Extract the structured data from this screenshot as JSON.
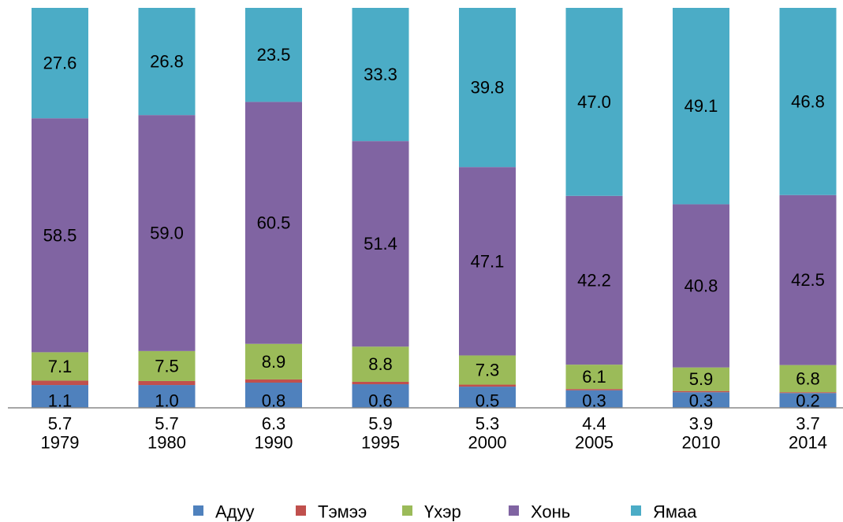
{
  "chart_data": {
    "type": "stacked_bar_percent",
    "categories": [
      "1979",
      "1980",
      "1990",
      "1995",
      "2000",
      "2005",
      "2010",
      "2014"
    ],
    "ylim": [
      0,
      100
    ],
    "grid": false,
    "legend_position": "bottom",
    "series": [
      {
        "name": "Адуу",
        "color": "#4f81bd",
        "values": [
          5.7,
          5.7,
          6.3,
          5.9,
          5.3,
          4.4,
          3.9,
          3.7
        ]
      },
      {
        "name": "Тэмээ",
        "color": "#c0504d",
        "values": [
          1.1,
          1.0,
          0.8,
          0.6,
          0.5,
          0.3,
          0.3,
          0.2
        ]
      },
      {
        "name": "Үхэр",
        "color": "#9bbb59",
        "values": [
          7.1,
          7.5,
          8.9,
          8.8,
          7.3,
          6.1,
          5.9,
          6.8
        ]
      },
      {
        "name": "Хонь",
        "color": "#8064a2",
        "values": [
          58.5,
          59.0,
          60.5,
          51.4,
          47.1,
          42.2,
          40.8,
          42.5
        ]
      },
      {
        "name": "Ямаа",
        "color": "#4bacc6",
        "values": [
          27.6,
          26.8,
          23.5,
          33.3,
          39.8,
          47.0,
          49.1,
          46.8
        ]
      }
    ]
  }
}
